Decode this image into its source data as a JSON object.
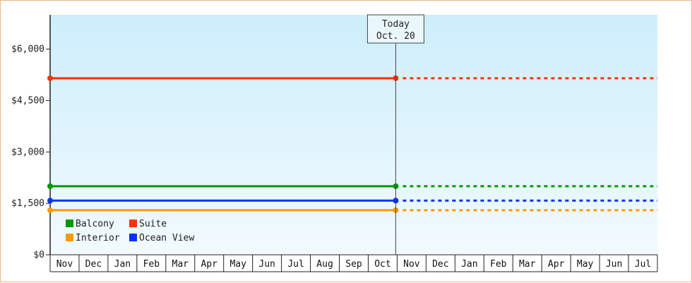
{
  "chart_data": {
    "type": "line",
    "y_ticks": [
      "$0",
      "$1,500",
      "$3,000",
      "$4,500",
      "$6,000"
    ],
    "y_tick_values": [
      0,
      1500,
      3000,
      4500,
      6000
    ],
    "ylim": [
      0,
      7000
    ],
    "categories": [
      "Nov",
      "Dec",
      "Jan",
      "Feb",
      "Mar",
      "Apr",
      "May",
      "Jun",
      "Jul",
      "Aug",
      "Sep",
      "Oct",
      "Nov",
      "Dec",
      "Jan",
      "Feb",
      "Mar",
      "Apr",
      "May",
      "Jun",
      "Jul"
    ],
    "today_index": 11,
    "today_marker": {
      "line1": "Today",
      "line2": "Oct. 20"
    },
    "series": [
      {
        "name": "Suite",
        "color": "#ff3300",
        "value": 5150
      },
      {
        "name": "Balcony",
        "color": "#009900",
        "value": 2000
      },
      {
        "name": "Ocean View",
        "color": "#0033ff",
        "value": 1580
      },
      {
        "name": "Interior",
        "color": "#ff9900",
        "value": 1300
      }
    ],
    "legend": [
      {
        "name": "Balcony",
        "color": "#009900"
      },
      {
        "name": "Suite",
        "color": "#ff3300"
      },
      {
        "name": "Interior",
        "color": "#ff9900"
      },
      {
        "name": "Ocean View",
        "color": "#0033ff"
      }
    ],
    "legend_placement": "bottom-left",
    "grid": false,
    "background_gradient": [
      "#cdeefb",
      "#f2faff"
    ]
  }
}
